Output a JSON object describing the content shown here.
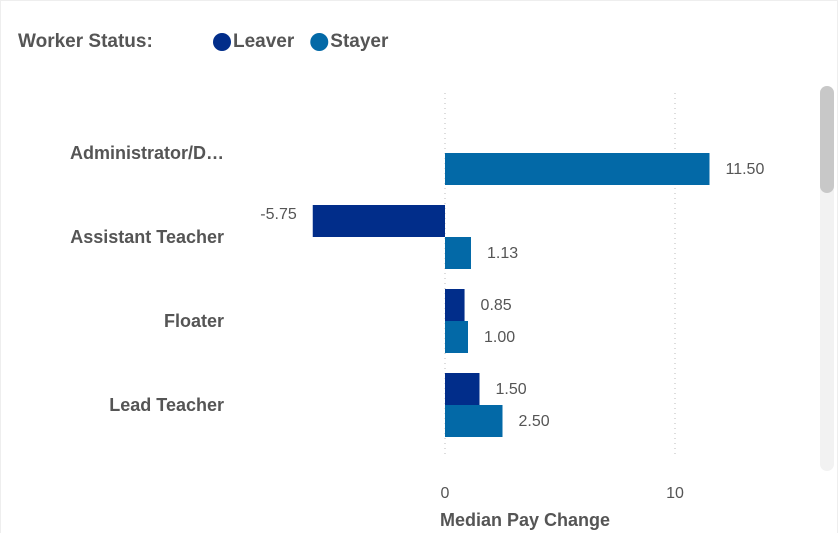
{
  "chart_data": {
    "type": "bar",
    "orientation": "horizontal",
    "legend_title": "Worker Status:",
    "categories": [
      "Administrator/D…",
      "Assistant Teacher",
      "Floater",
      "Lead Teacher"
    ],
    "series": [
      {
        "name": "Leaver",
        "color": "#012d8a",
        "values": [
          null,
          -5.75,
          0.85,
          1.5
        ],
        "value_labels": [
          null,
          "-5.75",
          "0.85",
          "1.50"
        ]
      },
      {
        "name": "Stayer",
        "color": "#0369a7",
        "values": [
          11.5,
          1.13,
          1.0,
          2.5
        ],
        "value_labels": [
          "11.50",
          "1.13",
          "1.00",
          "2.50"
        ]
      }
    ],
    "xlabel": "Median Pay Change",
    "xlim": [
      -10,
      15
    ],
    "xticks": [
      0,
      10
    ],
    "grid": true
  }
}
